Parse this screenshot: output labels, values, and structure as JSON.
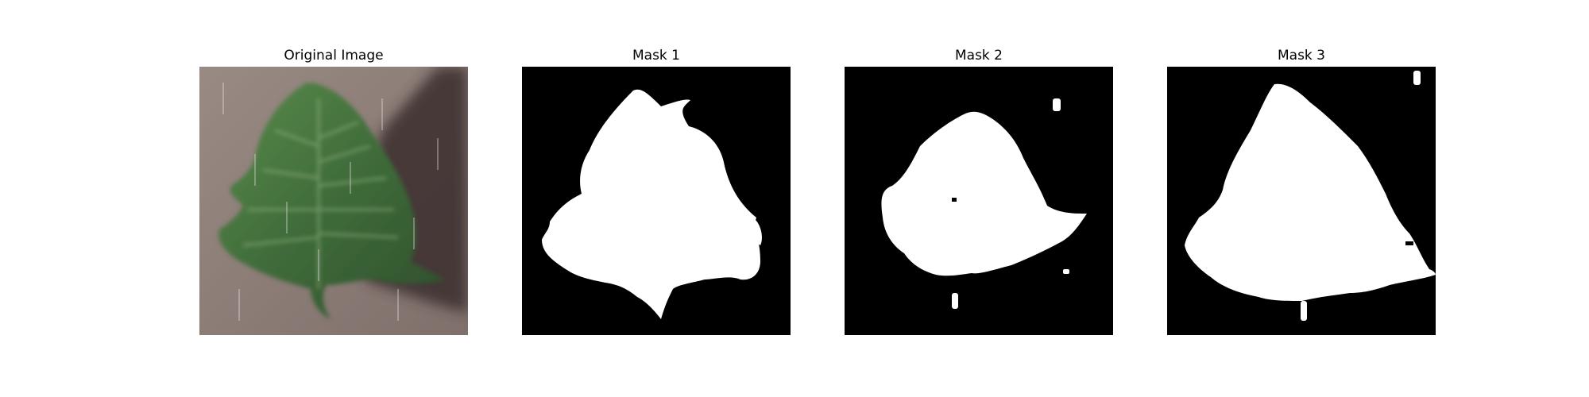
{
  "figure": {
    "panels": [
      {
        "title": "Original Image",
        "content": "photo of a green leaf on a textured surface"
      },
      {
        "title": "Mask 1",
        "content": "binary segmentation mask"
      },
      {
        "title": "Mask 2",
        "content": "binary segmentation mask"
      },
      {
        "title": "Mask 3",
        "content": "binary segmentation mask"
      }
    ]
  },
  "colors": {
    "mask_background": "#000000",
    "mask_foreground": "#ffffff",
    "photo_surface": "#8e7e78",
    "leaf_green": "#3f6b3a"
  }
}
